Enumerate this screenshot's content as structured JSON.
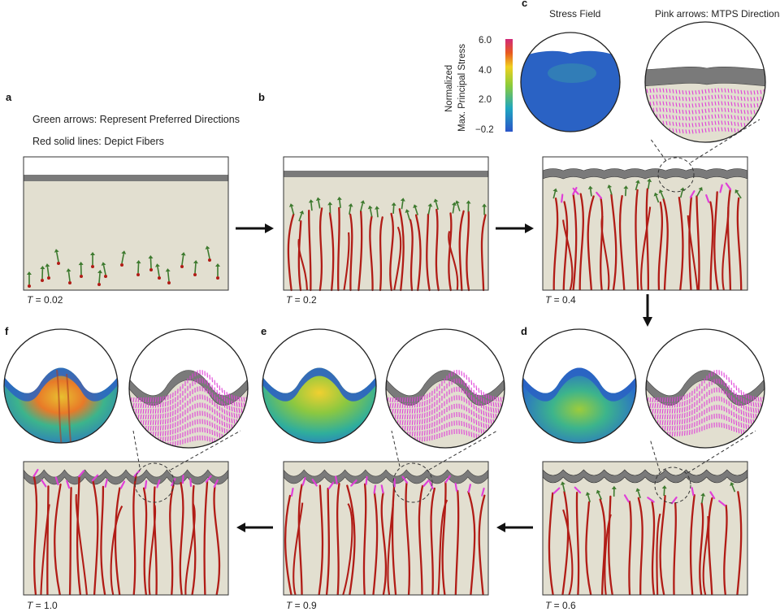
{
  "notes": {
    "green_arrows": "Green arrows: Represent Preferred Directions",
    "red_lines": "Red solid lines: Depict Fibers"
  },
  "titles": {
    "stress_field": "Stress Field",
    "pink_arrows": "Pink arrows: MTPS Directions"
  },
  "colorbar": {
    "label_line1": "Normalized",
    "label_line2": "Max. Principal Stress",
    "ticks": [
      "6.0",
      "4.0",
      "2.0",
      "−0.2"
    ]
  },
  "panels": [
    {
      "letter": "a",
      "time_var": "T",
      "time_value": " = 0.02"
    },
    {
      "letter": "b",
      "time_var": "T",
      "time_value": " = 0.2"
    },
    {
      "letter": "c",
      "time_var": "T",
      "time_value": " = 0.4"
    },
    {
      "letter": "d",
      "time_var": "T",
      "time_value": " = 0.6"
    },
    {
      "letter": "e",
      "time_var": "T",
      "time_value": " = 0.9"
    },
    {
      "letter": "f",
      "time_var": "T",
      "time_value": " = 1.0"
    }
  ],
  "colors": {
    "tissue": "#e2dfd0",
    "fiber": "#b11c16",
    "arrow_green": "#3d7a2e",
    "arrow_pink": "#e040d8",
    "cap_gray": "#777777",
    "stress_blue": "#2368c4"
  }
}
